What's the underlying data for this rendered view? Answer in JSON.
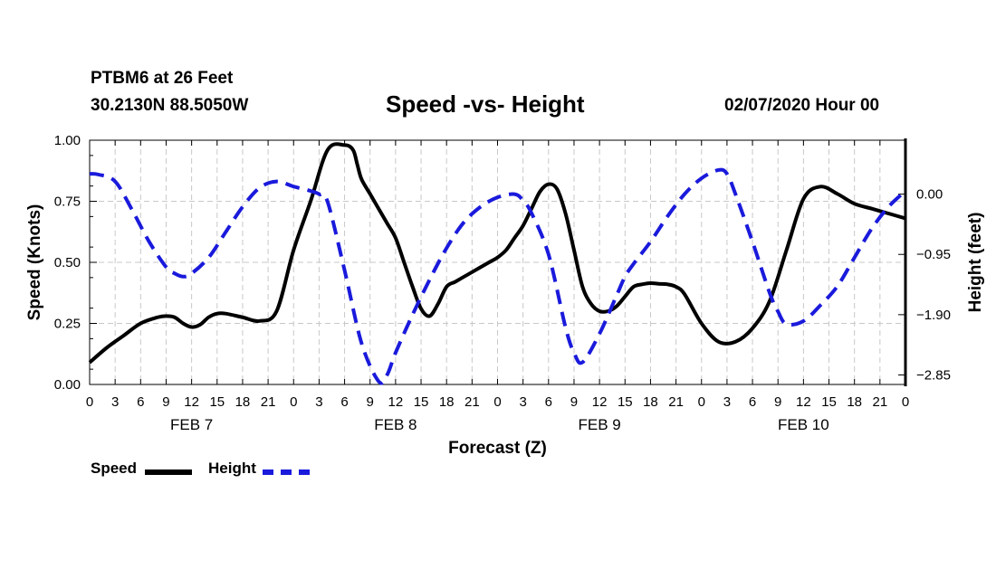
{
  "header": {
    "station": "PTBM6 at 26 Feet",
    "coordinates": "30.2130N 88.5050W",
    "title": "Speed -vs- Height",
    "datetime": "02/07/2020 Hour 00"
  },
  "legend": {
    "speed_label": "Speed",
    "height_label": "Height"
  },
  "colors": {
    "speed": "#000000",
    "height": "#1a1adc",
    "grid": "#c8c8c8"
  },
  "chart_data": {
    "type": "line",
    "title": "Speed -vs- Height",
    "xlabel": "Forecast (Z)",
    "ylabel_left": "Speed (Knots)",
    "ylabel_right": "Height (feet)",
    "x_unit": "hours since 02/07/2020 00Z",
    "xlim": [
      0,
      96
    ],
    "x_ticks": [
      0,
      3,
      6,
      9,
      12,
      15,
      18,
      21,
      24,
      27,
      30,
      33,
      36,
      39,
      42,
      45,
      48,
      51,
      54,
      57,
      60,
      63,
      66,
      69,
      72,
      75,
      78,
      81,
      84,
      87,
      90,
      93,
      96
    ],
    "x_tick_labels": [
      "0",
      "3",
      "6",
      "9",
      "12",
      "15",
      "18",
      "21",
      "0",
      "3",
      "6",
      "9",
      "12",
      "15",
      "18",
      "21",
      "0",
      "3",
      "6",
      "9",
      "12",
      "15",
      "18",
      "21",
      "0",
      "3",
      "6",
      "9",
      "12",
      "15",
      "18",
      "21",
      "0"
    ],
    "day_labels": [
      {
        "text": "FEB 7",
        "hour": 12
      },
      {
        "text": "FEB 8",
        "hour": 36
      },
      {
        "text": "FEB 9",
        "hour": 60
      },
      {
        "text": "FEB 10",
        "hour": 84
      }
    ],
    "left_axis": {
      "ylim": [
        0,
        1
      ],
      "ticks": [
        0,
        0.25,
        0.5,
        0.75,
        1.0
      ],
      "tick_labels": [
        "0.00",
        "0.25",
        "0.50",
        "0.75",
        "1.00"
      ]
    },
    "right_axis": {
      "ylim": [
        -3.0,
        0.85
      ],
      "ticks": [
        0,
        -0.95,
        -1.9,
        -2.85
      ],
      "tick_labels": [
        "0.00",
        "−0.95",
        "−1.90",
        "−2.85"
      ]
    },
    "grid": true,
    "series": [
      {
        "name": "Speed",
        "axis": "left",
        "style": "solid",
        "x": [
          0,
          2,
          4,
          6,
          8,
          9,
          10,
          11,
          12,
          13,
          14,
          15,
          16,
          18,
          20,
          22,
          24,
          26,
          28,
          30,
          31,
          31.5,
          32,
          33,
          34,
          35,
          36,
          37,
          38,
          39,
          40,
          41,
          42,
          43,
          44,
          45,
          46,
          47,
          48,
          49,
          50,
          51,
          52,
          53,
          54,
          55,
          56,
          57,
          58,
          59,
          60,
          61,
          62,
          63,
          64,
          65,
          66,
          67,
          68,
          69,
          70,
          72,
          74,
          76,
          78,
          80,
          82,
          84,
          86,
          88,
          90,
          92,
          94,
          96
        ],
        "y": [
          0.09,
          0.15,
          0.2,
          0.25,
          0.275,
          0.28,
          0.275,
          0.25,
          0.235,
          0.245,
          0.275,
          0.29,
          0.29,
          0.275,
          0.26,
          0.3,
          0.55,
          0.75,
          0.96,
          0.98,
          0.96,
          0.9,
          0.84,
          0.78,
          0.72,
          0.66,
          0.6,
          0.5,
          0.4,
          0.31,
          0.28,
          0.33,
          0.4,
          0.42,
          0.44,
          0.46,
          0.48,
          0.5,
          0.52,
          0.55,
          0.6,
          0.65,
          0.72,
          0.79,
          0.82,
          0.8,
          0.7,
          0.55,
          0.4,
          0.33,
          0.3,
          0.3,
          0.32,
          0.36,
          0.4,
          0.41,
          0.415,
          0.412,
          0.41,
          0.4,
          0.37,
          0.25,
          0.175,
          0.175,
          0.23,
          0.34,
          0.55,
          0.76,
          0.81,
          0.78,
          0.74,
          0.72,
          0.7,
          0.68
        ]
      },
      {
        "name": "Height",
        "axis": "right",
        "style": "dashed",
        "x": [
          0,
          1,
          3,
          5,
          7,
          9,
          10,
          11,
          12,
          14,
          16,
          18,
          20,
          22,
          24,
          26,
          27,
          28,
          30,
          32,
          34,
          35,
          36,
          38,
          40,
          42,
          44,
          46,
          48,
          50,
          51,
          52,
          54,
          56,
          57,
          58,
          60,
          62,
          63,
          64,
          66,
          68,
          70,
          72,
          74,
          75,
          76,
          78,
          80,
          81,
          82,
          84,
          86,
          88,
          90,
          92,
          94,
          96
        ],
        "y": [
          0.32,
          0.31,
          0.2,
          -0.25,
          -0.75,
          -1.15,
          -1.25,
          -1.3,
          -1.25,
          -1.0,
          -0.6,
          -0.2,
          0.1,
          0.2,
          0.12,
          0.05,
          0.0,
          -0.12,
          -1.2,
          -2.35,
          -2.95,
          -2.85,
          -2.5,
          -1.9,
          -1.35,
          -0.85,
          -0.45,
          -0.2,
          -0.05,
          0.0,
          -0.1,
          -0.3,
          -0.95,
          -2.1,
          -2.5,
          -2.65,
          -2.2,
          -1.6,
          -1.3,
          -1.1,
          -0.75,
          -0.35,
          0.0,
          0.25,
          0.38,
          0.32,
          0.0,
          -0.75,
          -1.55,
          -1.85,
          -2.05,
          -2.0,
          -1.75,
          -1.45,
          -1.0,
          -0.55,
          -0.2,
          0.05
        ]
      }
    ]
  }
}
